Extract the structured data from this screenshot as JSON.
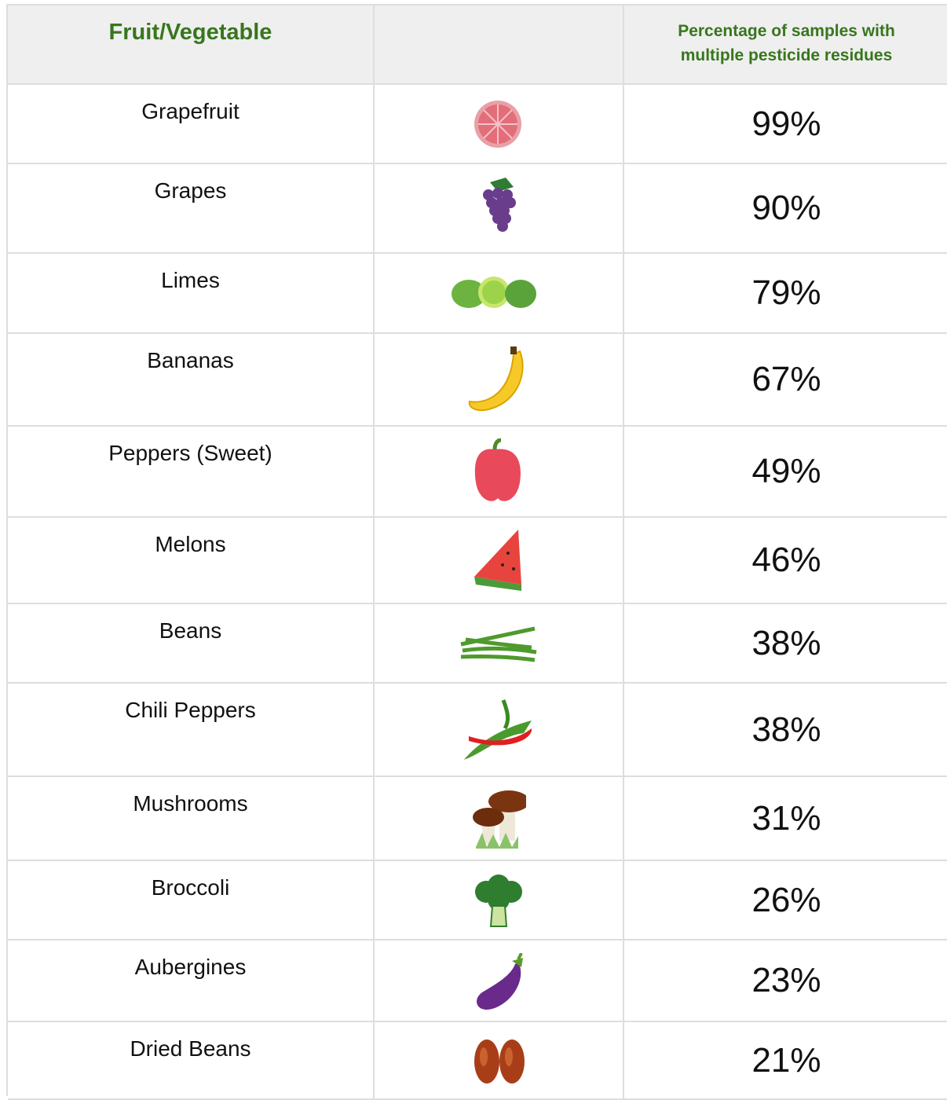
{
  "table": {
    "header": [
      "Fruit/Vegetable",
      "Percentage of samples with multiple pesticide residues"
    ],
    "rows": [
      [
        "Grapefruit",
        "99%"
      ],
      [
        "Grapes",
        "90%"
      ],
      [
        "Limes",
        "79%"
      ],
      [
        "Bananas",
        "67%"
      ],
      [
        "Peppers (Sweet)",
        "49%"
      ],
      [
        "Melons",
        "46%"
      ],
      [
        "Beans",
        "38%"
      ],
      [
        "Chili Peppers",
        "38%"
      ],
      [
        "Mushrooms",
        "31%"
      ],
      [
        "Broccoli",
        "26%"
      ],
      [
        "Aubergines",
        "23%"
      ],
      [
        "Dried Beans",
        "21%"
      ]
    ]
  }
}
